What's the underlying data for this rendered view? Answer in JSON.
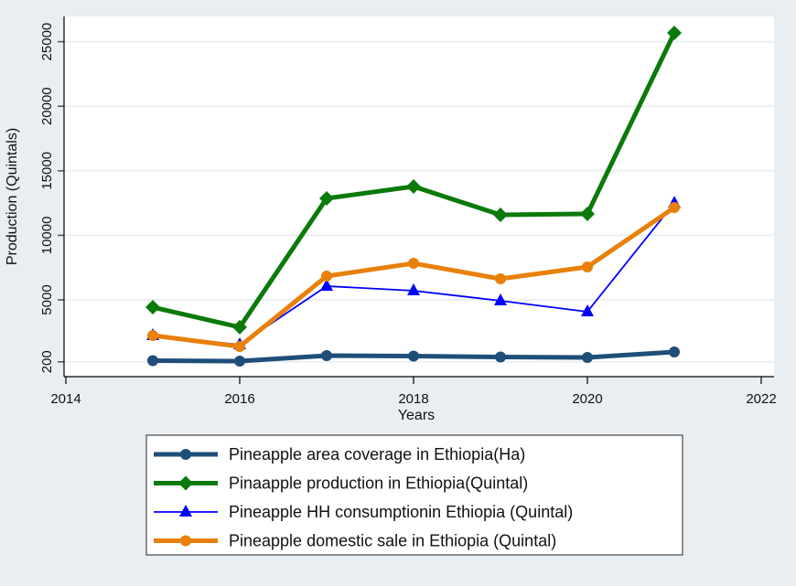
{
  "chart_data": {
    "type": "line",
    "title": "",
    "xlabel": "Years",
    "ylabel": "Production (Quintals)",
    "xlim": [
      2014,
      2022
    ],
    "ylim": [
      200,
      25500
    ],
    "x_ticks": [
      2014,
      2016,
      2018,
      2020,
      2022
    ],
    "x_tick_labels": [
      "2014",
      "2016",
      "2018",
      "2020",
      "2022"
    ],
    "y_ticks": [
      200,
      5000,
      10000,
      15000,
      20000,
      25000
    ],
    "y_tick_labels": [
      "200",
      "5000",
      "10000",
      "15000",
      "20000",
      "25000"
    ],
    "grid": true,
    "legend_placement": "bottom",
    "x": [
      2015,
      2016,
      2017,
      2018,
      2019,
      2020,
      2021
    ],
    "series": [
      {
        "name": "Pineapple area coverage in Ethiopia(Ha)",
        "color": "#1f4e79",
        "marker": "circle",
        "width": "thick",
        "values": [
          290,
          255,
          680,
          645,
          570,
          540,
          960
        ]
      },
      {
        "name": "Pinaapple production in Ethiopia(Quintal)",
        "color": "#0b7a0b",
        "marker": "diamond",
        "width": "thick",
        "values": [
          4430,
          2880,
          12860,
          13780,
          11590,
          11660,
          25680
        ]
      },
      {
        "name": "Pineapple HH consumptionin Ethiopia (Quintal)",
        "color": "#0000ff",
        "marker": "triangle",
        "width": "thin",
        "values": [
          2240,
          1530,
          6060,
          5710,
          4930,
          4080,
          12500
        ]
      },
      {
        "name": "Pineapple domestic sale in Ethiopia (Quintal)",
        "color": "#e8800a",
        "marker": "circle",
        "width": "thick",
        "values": [
          2240,
          1390,
          6840,
          7830,
          6630,
          7550,
          12150
        ]
      }
    ]
  }
}
